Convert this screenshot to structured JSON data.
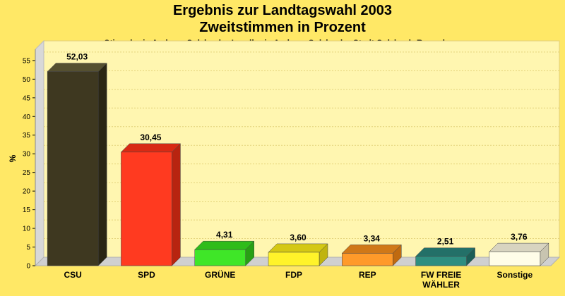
{
  "chart_data": {
    "type": "bar",
    "title": "Ergebnis zur Landtagswahl 2003",
    "title2": "Zweitstimmen in Prozent",
    "subtitle": "Stimmkreis Amberg-Sulzbach - Landkreis Amberg-Sulzbach - Stadt Sulzbach-Rosenberg",
    "ylabel": "%",
    "ylim": [
      0,
      58
    ],
    "yticks": [
      0,
      5,
      10,
      15,
      20,
      25,
      30,
      35,
      40,
      45,
      50,
      55
    ],
    "grid": true,
    "categories": [
      "CSU",
      "SPD",
      "GRÜNE",
      "FDP",
      "REP",
      [
        "FW FREIE",
        "WÄHLER"
      ],
      "Sonstige"
    ],
    "values": [
      52.03,
      30.45,
      4.31,
      3.6,
      3.34,
      2.51,
      3.76
    ],
    "value_labels": [
      "52,03",
      "30,45",
      "4,31",
      "3,60",
      "3,34",
      "2,51",
      "3,76"
    ],
    "colors": [
      "#3e3820",
      "#ff3a20",
      "#3fe628",
      "#fff32a",
      "#ff9a2a",
      "#2e8e80",
      "#fffde8"
    ],
    "top_colors": [
      "#555030",
      "#d82a14",
      "#2fbc1a",
      "#d4c814",
      "#d07818",
      "#237068",
      "#d8d4c0"
    ],
    "side_colors": [
      "#2a2614",
      "#b82410",
      "#28a014",
      "#c0b410",
      "#c06a10",
      "#1c5e56",
      "#c8c4b0"
    ]
  }
}
